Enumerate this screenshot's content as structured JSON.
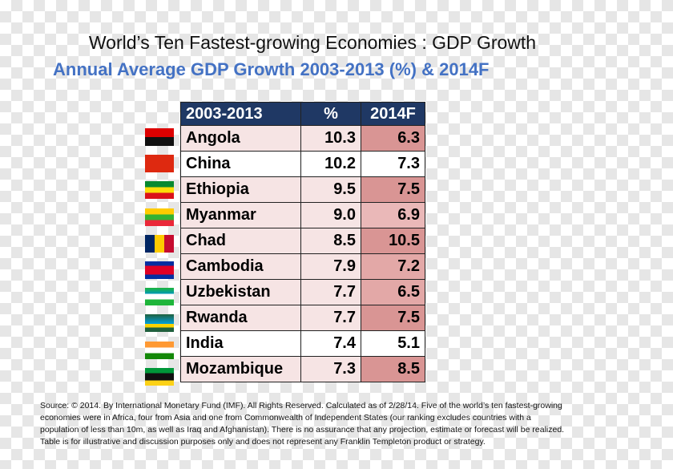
{
  "title": "World’s Ten Fastest-growing Economies : GDP Growth",
  "subtitle": "Annual Average GDP Growth 2003-2013 (%) & 2014F",
  "table": {
    "header": [
      "2003-2013",
      "%",
      "2014F"
    ],
    "rows": [
      [
        "Angola",
        "10.3",
        "6.3"
      ],
      [
        "China",
        "10.2",
        "7.3"
      ],
      [
        "Ethiopia",
        "9.5",
        "7.5"
      ],
      [
        "Myanmar",
        "9.0",
        "6.9"
      ],
      [
        "Chad",
        "8.5",
        "10.5"
      ],
      [
        "Cambodia",
        "7.9",
        "7.2"
      ],
      [
        "Uzbekistan",
        "7.7",
        "6.5"
      ],
      [
        "Rwanda",
        "7.7",
        "7.5"
      ],
      [
        "India",
        "7.4",
        "5.1"
      ],
      [
        "Mozambique",
        "7.3",
        "8.5"
      ]
    ]
  },
  "source": "Source: © 2014. By International Monetary Fund (IMF). All Rights Reserved. Calculated as of 2/28/14. Five of the world’s ten fastest-growing economies were in Africa, four from Asia and one from Commonwealth of Independent States (our ranking excludes countries with a population of less than 10m, as well as Iraq and Afghanistan). There is no assurance that any projection, estimate or forecast will be realized. Table is for illustrative and discussion purposes only and does not represent any Franklin Templeton product or strategy."
}
